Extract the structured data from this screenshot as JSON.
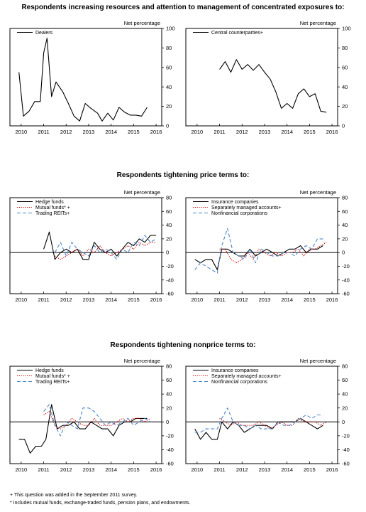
{
  "colors": {
    "black": "#000000",
    "red": "#cc0000",
    "blue": "#4f86c6"
  },
  "sections": [
    {
      "title": "Respondents increasing resources and attention to management of concentrated exposures to:"
    },
    {
      "title": "Respondents tightening price terms to:"
    },
    {
      "title": "Respondents tightening nonprice terms to:"
    }
  ],
  "footnotes": [
    "+ This question was added in the September 2011 survey.",
    "* Includes mutual funds, exchange-traded funds, pension plans, and endowments."
  ],
  "chart_data": [
    {
      "type": "line",
      "ylabel": "Net percentage",
      "ylim": [
        0,
        100
      ],
      "yticks": [
        "0",
        "20",
        "40",
        "60",
        "80",
        "100"
      ],
      "xlim": [
        2009.5,
        2016.25
      ],
      "xticks": [
        "2010",
        "2011",
        "2012",
        "2013",
        "2014",
        "2015",
        "2016"
      ],
      "zero_line": false,
      "legend": "top-left",
      "series": [
        {
          "name": "Dealers",
          "style": "solid",
          "color": "#000000",
          "x": [
            2009.9,
            2010.1,
            2010.35,
            2010.6,
            2010.85,
            2011.0,
            2011.15,
            2011.35,
            2011.55,
            2011.85,
            2012.1,
            2012.35,
            2012.6,
            2012.85,
            2013.1,
            2013.4,
            2013.6,
            2013.85,
            2014.1,
            2014.35,
            2014.6,
            2014.85,
            2015.1,
            2015.35,
            2015.6
          ],
          "y": [
            55,
            10,
            15,
            25,
            25,
            75,
            90,
            30,
            45,
            35,
            23,
            10,
            5,
            23,
            18,
            13,
            5,
            13,
            6,
            19,
            14,
            11,
            11,
            10,
            19
          ]
        }
      ]
    },
    {
      "type": "line",
      "ylabel": "Net percentage",
      "ylim": [
        0,
        100
      ],
      "yticks": [
        "0",
        "20",
        "40",
        "60",
        "80",
        "100"
      ],
      "xlim": [
        2009.5,
        2016.25
      ],
      "xticks": [
        "2010",
        "2011",
        "2012",
        "2013",
        "2014",
        "2015",
        "2016"
      ],
      "zero_line": false,
      "legend": "top-left",
      "series": [
        {
          "name": "Central counterparties+",
          "style": "solid",
          "color": "#000000",
          "x": [
            2011.0,
            2011.25,
            2011.5,
            2011.75,
            2012.0,
            2012.25,
            2012.5,
            2012.75,
            2013.0,
            2013.25,
            2013.5,
            2013.75,
            2014.0,
            2014.25,
            2014.5,
            2014.75,
            2015.0,
            2015.25,
            2015.5,
            2015.75
          ],
          "y": [
            58,
            66,
            55,
            68,
            58,
            63,
            57,
            63,
            55,
            48,
            35,
            18,
            23,
            18,
            33,
            38,
            30,
            33,
            15,
            14
          ]
        }
      ]
    },
    {
      "type": "line",
      "ylabel": "Net percentage",
      "ylim": [
        -60,
        80
      ],
      "yticks": [
        "-60",
        "-40",
        "-20",
        "0",
        "20",
        "40",
        "60",
        "80"
      ],
      "xlim": [
        2009.5,
        2016.25
      ],
      "xticks": [
        "2010",
        "2011",
        "2012",
        "2013",
        "2014",
        "2015",
        "2016"
      ],
      "zero_line": true,
      "legend": "top-left",
      "series": [
        {
          "name": "Hedge funds",
          "style": "solid",
          "color": "#000000",
          "x": [
            2011.0,
            2011.25,
            2011.5,
            2011.75,
            2012.0,
            2012.25,
            2012.5,
            2012.75,
            2013.0,
            2013.25,
            2013.5,
            2013.75,
            2014.0,
            2014.25,
            2014.5,
            2014.75,
            2015.0,
            2015.25,
            2015.5,
            2015.75,
            2016.0
          ],
          "y": [
            5,
            30,
            -10,
            0,
            5,
            0,
            5,
            -10,
            -10,
            15,
            5,
            0,
            5,
            -5,
            5,
            15,
            10,
            20,
            15,
            25,
            25
          ]
        },
        {
          "name": "Mutual funds* +",
          "style": "dotted",
          "color": "#cc0000",
          "x": [
            2011.5,
            2011.75,
            2012.0,
            2012.25,
            2012.5,
            2012.75,
            2013.0,
            2013.25,
            2013.5,
            2013.75,
            2014.0,
            2014.25,
            2014.5,
            2014.75,
            2015.0,
            2015.25,
            2015.5,
            2015.75,
            2016.0
          ],
          "y": [
            -5,
            -10,
            -5,
            0,
            5,
            -5,
            5,
            0,
            10,
            0,
            -5,
            0,
            5,
            10,
            5,
            15,
            10,
            15,
            15
          ]
        },
        {
          "name": "Trading REITs+",
          "style": "dashed",
          "color": "#4f86c6",
          "x": [
            2011.5,
            2011.75,
            2012.0,
            2012.25,
            2012.5,
            2012.75,
            2013.0,
            2013.25,
            2013.5,
            2013.75,
            2014.0,
            2014.25,
            2014.5,
            2014.75,
            2015.0,
            2015.25,
            2015.5,
            2015.75,
            2016.0
          ],
          "y": [
            0,
            15,
            -5,
            15,
            5,
            0,
            -5,
            10,
            0,
            5,
            0,
            -10,
            5,
            0,
            15,
            10,
            25,
            15,
            20
          ]
        }
      ]
    },
    {
      "type": "line",
      "ylabel": "Net percentage",
      "ylim": [
        -60,
        80
      ],
      "yticks": [
        "-60",
        "-40",
        "-20",
        "0",
        "20",
        "40",
        "60",
        "80"
      ],
      "xlim": [
        2009.5,
        2016.25
      ],
      "xticks": [
        "2010",
        "2011",
        "2012",
        "2013",
        "2014",
        "2015",
        "2016"
      ],
      "zero_line": true,
      "legend": "top-left",
      "series": [
        {
          "name": "Insurance companies",
          "style": "solid",
          "color": "#000000",
          "x": [
            2009.9,
            2010.15,
            2010.4,
            2010.65,
            2010.9,
            2011.1,
            2011.35,
            2011.6,
            2011.85,
            2012.1,
            2012.35,
            2012.6,
            2012.85,
            2013.1,
            2013.35,
            2013.6,
            2013.85,
            2014.1,
            2014.35,
            2014.6,
            2014.85,
            2015.1,
            2015.35,
            2015.6
          ],
          "y": [
            -10,
            -15,
            -10,
            -10,
            -25,
            5,
            5,
            0,
            -5,
            -5,
            5,
            -5,
            0,
            5,
            0,
            -5,
            0,
            5,
            5,
            10,
            0,
            5,
            5,
            10
          ]
        },
        {
          "name": "Separately managed accounts+",
          "style": "dotted",
          "color": "#cc0000",
          "x": [
            2011.0,
            2011.25,
            2011.5,
            2011.75,
            2012.0,
            2012.25,
            2012.5,
            2012.75,
            2013.0,
            2013.25,
            2013.5,
            2013.75,
            2014.0,
            2014.25,
            2014.5,
            2014.75,
            2015.0,
            2015.25,
            2015.5,
            2015.75
          ],
          "y": [
            5,
            5,
            -10,
            -15,
            -10,
            0,
            -10,
            5,
            0,
            -5,
            0,
            -5,
            0,
            0,
            5,
            -5,
            5,
            5,
            10,
            15
          ]
        },
        {
          "name": "Nonfinancial corporations",
          "style": "dashed",
          "color": "#4f86c6",
          "x": [
            2009.9,
            2010.15,
            2010.4,
            2010.65,
            2010.9,
            2011.1,
            2011.35,
            2011.6,
            2011.85,
            2012.1,
            2012.35,
            2012.6,
            2012.85,
            2013.1,
            2013.35,
            2013.6,
            2013.85,
            2014.1,
            2014.35,
            2014.6,
            2014.85,
            2015.1,
            2015.35,
            2015.6
          ],
          "y": [
            -25,
            -15,
            -20,
            -25,
            -30,
            10,
            35,
            0,
            -5,
            -10,
            5,
            -15,
            5,
            0,
            -5,
            -5,
            0,
            0,
            -5,
            5,
            10,
            5,
            20,
            20
          ]
        }
      ]
    },
    {
      "type": "line",
      "ylabel": "Net percentage",
      "ylim": [
        -60,
        80
      ],
      "yticks": [
        "-60",
        "-40",
        "-20",
        "0",
        "20",
        "40",
        "60",
        "80"
      ],
      "xlim": [
        2009.5,
        2016.25
      ],
      "xticks": [
        "2010",
        "2011",
        "2012",
        "2013",
        "2014",
        "2015",
        "2016"
      ],
      "zero_line": true,
      "legend": "top-left",
      "series": [
        {
          "name": "Hedge funds",
          "style": "solid",
          "color": "#000000",
          "x": [
            2009.9,
            2010.15,
            2010.4,
            2010.65,
            2010.9,
            2011.1,
            2011.35,
            2011.6,
            2011.85,
            2012.1,
            2012.35,
            2012.6,
            2012.85,
            2013.1,
            2013.35,
            2013.6,
            2013.85,
            2014.1,
            2014.35,
            2014.6,
            2014.85,
            2015.1,
            2015.35,
            2015.6
          ],
          "y": [
            -25,
            -25,
            -45,
            -35,
            -35,
            -25,
            25,
            -10,
            -5,
            -5,
            0,
            -10,
            -10,
            0,
            -5,
            -10,
            -10,
            -20,
            -5,
            0,
            0,
            5,
            5,
            5
          ]
        },
        {
          "name": "Mutual funds* +",
          "style": "dotted",
          "color": "#cc0000",
          "x": [
            2011.0,
            2011.25,
            2011.5,
            2011.75,
            2012.0,
            2012.25,
            2012.5,
            2012.75,
            2013.0,
            2013.25,
            2013.5,
            2013.75,
            2014.0,
            2014.25,
            2014.5,
            2014.75,
            2015.0,
            2015.25,
            2015.5,
            2015.75
          ],
          "y": [
            10,
            15,
            -5,
            -10,
            -5,
            5,
            0,
            -5,
            -5,
            5,
            -5,
            -5,
            -5,
            0,
            5,
            0,
            5,
            5,
            0,
            5
          ]
        },
        {
          "name": "Trading REITs+",
          "style": "dashed",
          "color": "#4f86c6",
          "x": [
            2011.0,
            2011.25,
            2011.5,
            2011.75,
            2012.0,
            2012.25,
            2012.5,
            2012.75,
            2013.0,
            2013.25,
            2013.5,
            2013.75,
            2014.0,
            2014.25,
            2014.5,
            2014.75,
            2015.0,
            2015.25,
            2015.5,
            2015.75
          ],
          "y": [
            15,
            25,
            -5,
            -20,
            0,
            -5,
            -10,
            20,
            20,
            15,
            5,
            -5,
            0,
            -5,
            0,
            5,
            -5,
            0,
            5,
            0
          ]
        }
      ]
    },
    {
      "type": "line",
      "ylabel": "Net percentage",
      "ylim": [
        -60,
        80
      ],
      "yticks": [
        "-60",
        "-40",
        "-20",
        "0",
        "20",
        "40",
        "60",
        "80"
      ],
      "xlim": [
        2009.5,
        2016.25
      ],
      "xticks": [
        "2010",
        "2011",
        "2012",
        "2013",
        "2014",
        "2015",
        "2016"
      ],
      "zero_line": true,
      "legend": "top-left",
      "series": [
        {
          "name": "Insurance companies",
          "style": "solid",
          "color": "#000000",
          "x": [
            2009.9,
            2010.15,
            2010.4,
            2010.65,
            2010.9,
            2011.1,
            2011.35,
            2011.6,
            2011.85,
            2012.1,
            2012.35,
            2012.6,
            2012.85,
            2013.1,
            2013.35,
            2013.6,
            2013.85,
            2014.1,
            2014.35,
            2014.6,
            2014.85,
            2015.1,
            2015.35,
            2015.6
          ],
          "y": [
            -10,
            -25,
            -15,
            -25,
            -25,
            0,
            -10,
            0,
            -5,
            -15,
            -10,
            -5,
            -5,
            -5,
            -10,
            0,
            0,
            0,
            0,
            5,
            0,
            -5,
            -10,
            -5
          ]
        },
        {
          "name": "Separately managed accounts+",
          "style": "dotted",
          "color": "#cc0000",
          "x": [
            2011.0,
            2011.25,
            2011.5,
            2011.75,
            2012.0,
            2012.25,
            2012.5,
            2012.75,
            2013.0,
            2013.25,
            2013.5,
            2013.75,
            2014.0,
            2014.25,
            2014.5,
            2014.75,
            2015.0,
            2015.25,
            2015.5,
            2015.75
          ],
          "y": [
            5,
            0,
            -5,
            0,
            -5,
            -5,
            -5,
            0,
            -5,
            -10,
            -5,
            0,
            -5,
            -5,
            5,
            0,
            0,
            0,
            -5,
            0
          ]
        },
        {
          "name": "Nonfinancial corporations",
          "style": "dashed",
          "color": "#4f86c6",
          "x": [
            2009.9,
            2010.15,
            2010.4,
            2010.65,
            2010.9,
            2011.1,
            2011.35,
            2011.6,
            2011.85,
            2012.1,
            2012.35,
            2012.6,
            2012.85,
            2013.1,
            2013.35,
            2013.6,
            2013.85,
            2014.1,
            2014.35,
            2014.6,
            2014.85,
            2015.1,
            2015.35,
            2015.6
          ],
          "y": [
            -15,
            -15,
            -10,
            -10,
            -10,
            5,
            20,
            0,
            -5,
            -5,
            -10,
            -5,
            -10,
            -10,
            -10,
            0,
            -5,
            -5,
            0,
            5,
            10,
            5,
            10,
            10
          ]
        }
      ]
    }
  ]
}
